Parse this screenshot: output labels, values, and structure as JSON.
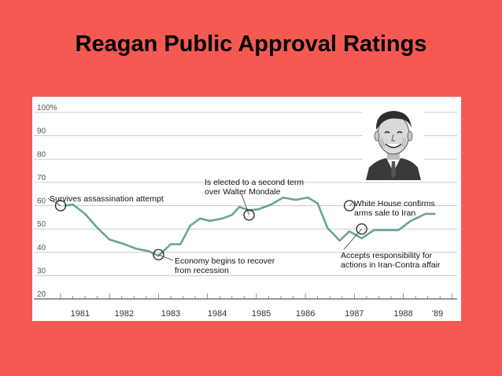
{
  "slide": {
    "title": "Reagan Public Approval Ratings"
  },
  "chart_data": {
    "type": "line",
    "title": "",
    "xlabel": "",
    "ylabel": "",
    "ylim": [
      20,
      100
    ],
    "yticks": [
      20,
      30,
      40,
      50,
      60,
      70,
      80,
      90,
      100
    ],
    "ytick_labels": [
      "20",
      "30",
      "40",
      "50",
      "60",
      "70",
      "80",
      "90",
      "100%"
    ],
    "xlim": [
      1981.0,
      1989.1
    ],
    "xtick_labels": [
      {
        "label": "1981",
        "year": 1981.4
      },
      {
        "label": "1982",
        "year": 1982.3
      },
      {
        "label": "1983",
        "year": 1983.25
      },
      {
        "label": "1984",
        "year": 1984.2
      },
      {
        "label": "1985",
        "year": 1985.1
      },
      {
        "label": "1986",
        "year": 1986.0
      },
      {
        "label": "1987",
        "year": 1987.0
      },
      {
        "label": "1988",
        "year": 1988.0
      },
      {
        "label": "'89",
        "year": 1988.7
      }
    ],
    "grid": true,
    "line_color": "#6aa39a",
    "series": [
      {
        "x": [
          1981.08,
          1981.25,
          1981.5,
          1981.75,
          1982.0,
          1982.3,
          1982.55,
          1982.8,
          1983.0,
          1983.25,
          1983.45,
          1983.65,
          1983.85,
          1984.05,
          1984.3,
          1984.5,
          1984.65,
          1984.85,
          1985.05,
          1985.3,
          1985.55,
          1985.8,
          1986.05,
          1986.25,
          1986.45,
          1986.7,
          1986.9,
          1987.15,
          1987.4,
          1987.65,
          1987.9,
          1988.15,
          1988.45,
          1988.65
        ],
        "y": [
          60,
          60.5,
          56.5,
          50.5,
          45.5,
          43.5,
          41.5,
          40.5,
          38.5,
          43.5,
          43.5,
          51.5,
          54.5,
          53.5,
          54.5,
          56,
          59.5,
          58,
          58.5,
          60.5,
          63.5,
          62.5,
          63.5,
          61,
          50.5,
          45,
          49,
          46,
          49.5,
          49.5,
          49.5,
          53.5,
          56.5,
          56.5
        ]
      }
    ],
    "annotations": [
      {
        "lines": [
          "Survives assassination attempt"
        ],
        "x": 1981.0,
        "y": 60
      },
      {
        "lines": [
          "Economy begins to recover",
          "from recession"
        ],
        "x": 1983.0,
        "y": 39
      },
      {
        "lines": [
          "Is elected to a second term",
          "over Walter Mondale"
        ],
        "x": 1984.85,
        "y": 56
      },
      {
        "lines": [
          "White House confirms",
          "arms sale to Iran"
        ],
        "x": 1986.9,
        "y": 60
      },
      {
        "lines": [
          "Accepts responsibility for",
          "actions in Iran-Contra affair"
        ],
        "x": 1987.15,
        "y": 50
      }
    ]
  },
  "portrait": {
    "icon": "reagan-portrait-icon"
  }
}
